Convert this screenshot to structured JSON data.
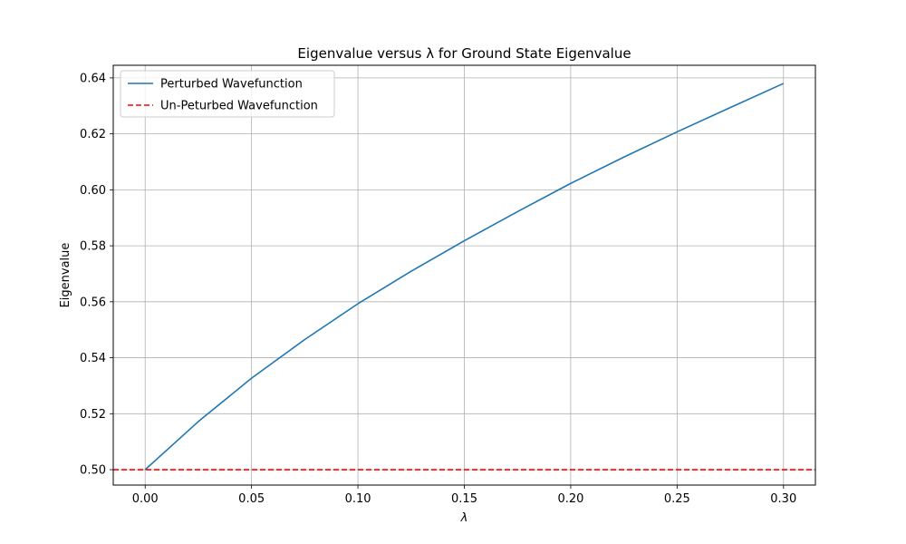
{
  "chart_data": {
    "type": "line",
    "title": "Eigenvalue versus λ for Ground State Eigenvalue",
    "xlabel": "λ",
    "ylabel": "Eigenvalue",
    "xlim": [
      -0.015,
      0.315
    ],
    "ylim": [
      0.4945,
      0.6445
    ],
    "xticks": [
      0.0,
      0.05,
      0.1,
      0.15,
      0.2,
      0.25,
      0.3
    ],
    "xtick_labels": [
      "0.00",
      "0.05",
      "0.10",
      "0.15",
      "0.20",
      "0.25",
      "0.30"
    ],
    "yticks": [
      0.5,
      0.52,
      0.54,
      0.56,
      0.58,
      0.6,
      0.62,
      0.64
    ],
    "ytick_labels": [
      "0.50",
      "0.52",
      "0.54",
      "0.56",
      "0.58",
      "0.60",
      "0.62",
      "0.64"
    ],
    "grid": true,
    "legend_position": "upper-left",
    "series": [
      {
        "name": "Perturbed Wavefunction",
        "color": "#1f77b4",
        "style": "solid",
        "x": [
          0.0,
          0.025,
          0.05,
          0.075,
          0.1,
          0.125,
          0.15,
          0.175,
          0.2,
          0.225,
          0.25,
          0.275,
          0.3
        ],
        "y": [
          0.5,
          0.5172,
          0.5327,
          0.5465,
          0.5593,
          0.5709,
          0.5818,
          0.5922,
          0.6023,
          0.6117,
          0.6207,
          0.6294,
          0.638
        ]
      },
      {
        "name": "Un-Peturbed Wavefunction",
        "color": "#ff0000",
        "style": "dashed",
        "x": [
          -0.015,
          0.315
        ],
        "y": [
          0.5,
          0.5
        ]
      }
    ]
  }
}
